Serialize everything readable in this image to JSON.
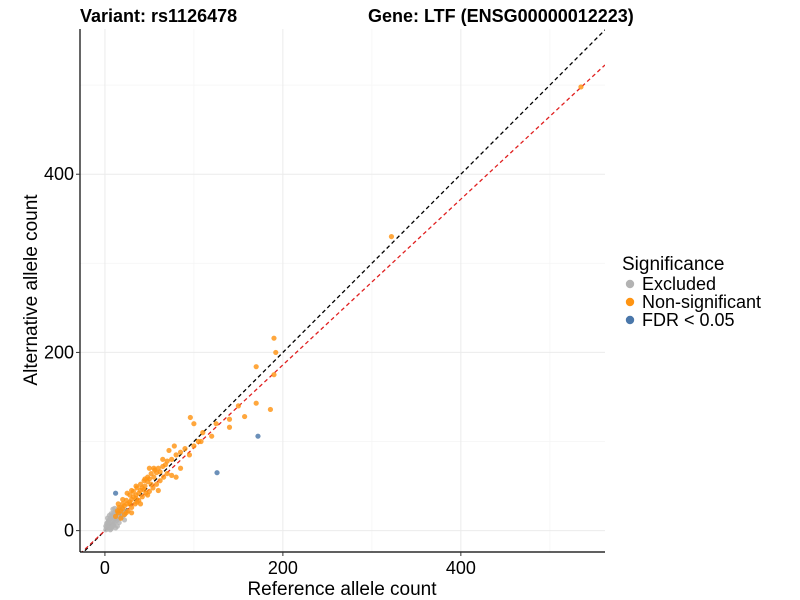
{
  "chart_data": {
    "type": "scatter",
    "title_left": "Variant: rs1126478",
    "title_right": "Gene: LTF (ENSG00000012223)",
    "xlabel": "Reference allele count",
    "ylabel": "Alternative allele count",
    "xlim": [
      -28,
      562
    ],
    "ylim": [
      -24,
      563
    ],
    "x_ticks": [
      0,
      200,
      400
    ],
    "y_ticks": [
      0,
      200,
      400
    ],
    "grid": true,
    "legend": {
      "title": "Significance",
      "position": "right",
      "entries": [
        {
          "label": "Excluded",
          "color": "#b3b3b3"
        },
        {
          "label": "Non-significant",
          "color": "#ff9412"
        },
        {
          "label": "FDR < 0.05",
          "color": "#4a77aa"
        }
      ]
    },
    "reference_lines": [
      {
        "name": "identity",
        "slope": 1.0,
        "intercept": 0,
        "color": "#000000",
        "dash": "dashed"
      },
      {
        "name": "fit",
        "slope": 0.93,
        "intercept": 0,
        "color": "#e02020",
        "dash": "dashed"
      }
    ],
    "series": [
      {
        "name": "Excluded",
        "color": "#b3b3b3",
        "points": [
          [
            1,
            1
          ],
          [
            2,
            4
          ],
          [
            3,
            2
          ],
          [
            4,
            6
          ],
          [
            5,
            3
          ],
          [
            6,
            8
          ],
          [
            7,
            5
          ],
          [
            8,
            10
          ],
          [
            9,
            7
          ],
          [
            10,
            12
          ],
          [
            11,
            9
          ],
          [
            12,
            14
          ],
          [
            13,
            11
          ],
          [
            14,
            16
          ],
          [
            15,
            13
          ],
          [
            4,
            11
          ],
          [
            6,
            14
          ],
          [
            8,
            17
          ],
          [
            10,
            20
          ],
          [
            12,
            22
          ],
          [
            3,
            9
          ],
          [
            5,
            12
          ],
          [
            7,
            2
          ],
          [
            9,
            15
          ],
          [
            11,
            18
          ],
          [
            13,
            20
          ],
          [
            15,
            22
          ],
          [
            17,
            19
          ],
          [
            19,
            21
          ],
          [
            16,
            9
          ],
          [
            18,
            14
          ],
          [
            20,
            16
          ],
          [
            22,
            18
          ],
          [
            14,
            5
          ],
          [
            2,
            8
          ],
          [
            1,
            5
          ],
          [
            6,
            1
          ],
          [
            8,
            4
          ],
          [
            10,
            6
          ],
          [
            12,
            3
          ],
          [
            20,
            24
          ],
          [
            18,
            26
          ],
          [
            16,
            23
          ],
          [
            24,
            22
          ],
          [
            22,
            12
          ],
          [
            5,
            17
          ],
          [
            7,
            19
          ],
          [
            9,
            24
          ],
          [
            3,
            14
          ],
          [
            11,
            25
          ]
        ]
      },
      {
        "name": "Non-significant",
        "color": "#ff9412",
        "points": [
          [
            12,
            16
          ],
          [
            15,
            20
          ],
          [
            18,
            22
          ],
          [
            20,
            25
          ],
          [
            22,
            28
          ],
          [
            25,
            30
          ],
          [
            28,
            32
          ],
          [
            30,
            35
          ],
          [
            32,
            38
          ],
          [
            35,
            40
          ],
          [
            38,
            42
          ],
          [
            40,
            45
          ],
          [
            42,
            48
          ],
          [
            45,
            50
          ],
          [
            48,
            55
          ],
          [
            50,
            58
          ],
          [
            55,
            60
          ],
          [
            58,
            65
          ],
          [
            60,
            70
          ],
          [
            65,
            72
          ],
          [
            70,
            78
          ],
          [
            75,
            80
          ],
          [
            80,
            85
          ],
          [
            16,
            26
          ],
          [
            20,
            30
          ],
          [
            24,
            34
          ],
          [
            28,
            40
          ],
          [
            32,
            44
          ],
          [
            36,
            48
          ],
          [
            40,
            52
          ],
          [
            44,
            56
          ],
          [
            48,
            60
          ],
          [
            52,
            64
          ],
          [
            56,
            68
          ],
          [
            18,
            14
          ],
          [
            22,
            18
          ],
          [
            26,
            22
          ],
          [
            30,
            26
          ],
          [
            34,
            30
          ],
          [
            38,
            34
          ],
          [
            42,
            38
          ],
          [
            46,
            42
          ],
          [
            50,
            44
          ],
          [
            54,
            48
          ],
          [
            58,
            52
          ],
          [
            62,
            56
          ],
          [
            66,
            60
          ],
          [
            70,
            64
          ],
          [
            25,
            42
          ],
          [
            30,
            45
          ],
          [
            35,
            50
          ],
          [
            45,
            58
          ],
          [
            55,
            70
          ],
          [
            65,
            80
          ],
          [
            72,
            90
          ],
          [
            78,
            95
          ],
          [
            85,
            88
          ],
          [
            90,
            92
          ],
          [
            95,
            85
          ],
          [
            100,
            95
          ],
          [
            105,
            100
          ],
          [
            110,
            110
          ],
          [
            96,
            127
          ],
          [
            100,
            120
          ],
          [
            108,
            100
          ],
          [
            120,
            106
          ],
          [
            125,
            120
          ],
          [
            140,
            125
          ],
          [
            140,
            116
          ],
          [
            150,
            140
          ],
          [
            157,
            128
          ],
          [
            170,
            143
          ],
          [
            186,
            136
          ],
          [
            190,
            175
          ],
          [
            192,
            200
          ],
          [
            190,
            216
          ],
          [
            170,
            184
          ],
          [
            322,
            330
          ],
          [
            535,
            498
          ],
          [
            35,
            36
          ],
          [
            60,
            45
          ],
          [
            75,
            62
          ],
          [
            85,
            70
          ],
          [
            80,
            60
          ],
          [
            28,
            30
          ],
          [
            14,
            22
          ],
          [
            24,
            20
          ],
          [
            36,
            32
          ],
          [
            44,
            46
          ],
          [
            52,
            52
          ],
          [
            62,
            66
          ],
          [
            68,
            74
          ],
          [
            48,
            40
          ],
          [
            30,
            20
          ],
          [
            40,
            30
          ],
          [
            20,
            35
          ],
          [
            15,
            30
          ],
          [
            50,
            70
          ]
        ]
      },
      {
        "name": "FDR < 0.05",
        "color": "#4a77aa",
        "points": [
          [
            12,
            42
          ],
          [
            126,
            65
          ],
          [
            172,
            106
          ]
        ]
      }
    ]
  }
}
